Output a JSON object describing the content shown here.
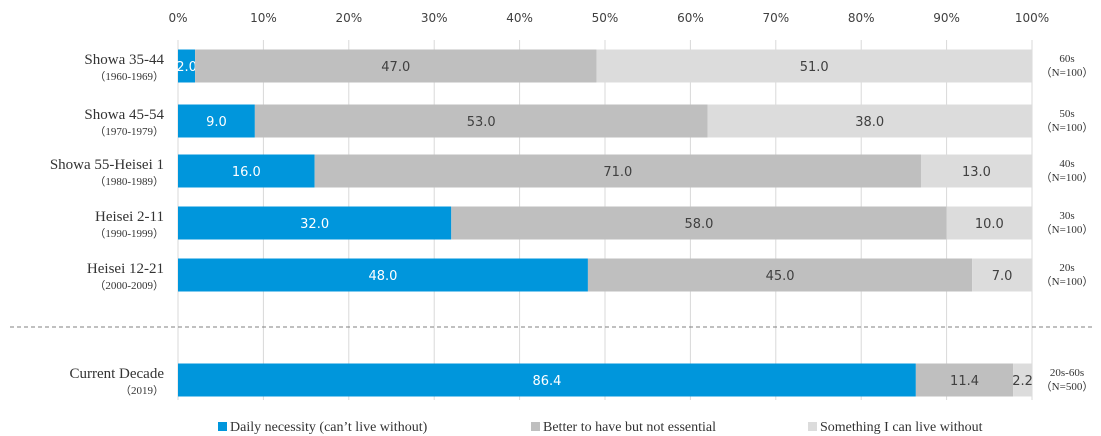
{
  "chart_data": {
    "type": "bar",
    "orientation": "horizontal",
    "stacked": true,
    "x_ticks": [
      "0%",
      "10%",
      "20%",
      "30%",
      "40%",
      "50%",
      "60%",
      "70%",
      "80%",
      "90%",
      "100%"
    ],
    "xlim": [
      0,
      100
    ],
    "categories": [
      {
        "label": "Showa 35-44",
        "sublabel": "（1960-1969）",
        "side_top": "60s",
        "side_bottom": "（N=100）"
      },
      {
        "label": "Showa 45-54",
        "sublabel": "（1970-1979）",
        "side_top": "50s",
        "side_bottom": "（N=100）"
      },
      {
        "label": "Showa 55-Heisei 1",
        "sublabel": "（1980-1989）",
        "side_top": "40s",
        "side_bottom": "（N=100）"
      },
      {
        "label": "Heisei 2-11",
        "sublabel": "（1990-1999）",
        "side_top": "30s",
        "side_bottom": "（N=100）"
      },
      {
        "label": "Heisei 12-21",
        "sublabel": "（2000-2009）",
        "side_top": "20s",
        "side_bottom": "（N=100）"
      },
      {
        "label": "Current Decade",
        "sublabel": "（2019）",
        "side_top": "20s-60s",
        "side_bottom": "（N=500）"
      }
    ],
    "series": [
      {
        "name": "Daily necessity (can’t live without)",
        "color": "#0096dc",
        "label_color": "#ffffff",
        "values": [
          2.0,
          9.0,
          16.0,
          32.0,
          48.0,
          86.4
        ],
        "labels": [
          "2.0",
          "9.0",
          "16.0",
          "32.0",
          "48.0",
          "86.4"
        ]
      },
      {
        "name": "Better to have but not essential",
        "color": "#bfbfbf",
        "label_color": "#404040",
        "values": [
          47.0,
          53.0,
          71.0,
          58.0,
          45.0,
          11.4
        ],
        "labels": [
          "47.0",
          "53.0",
          "71.0",
          "58.0",
          "45.0",
          "11.4"
        ]
      },
      {
        "name": "Something I can live without",
        "color": "#dcdcdc",
        "label_color": "#404040",
        "values": [
          51.0,
          38.0,
          13.0,
          10.0,
          7.0,
          2.2
        ],
        "labels": [
          "51.0",
          "38.0",
          "13.0",
          "10.0",
          "7.0",
          "2.2"
        ]
      }
    ],
    "separator": "dashed line between Heisei 12-21 and Current Decade",
    "legend_position": "bottom",
    "grid": true
  }
}
